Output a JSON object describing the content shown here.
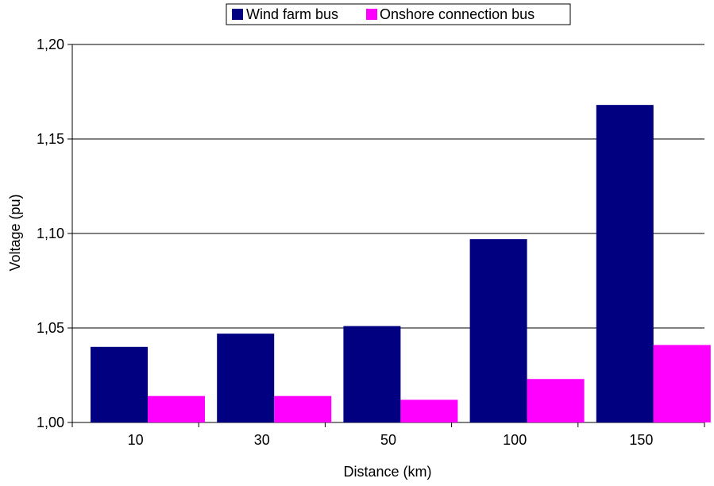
{
  "chart_data": {
    "type": "bar",
    "title": "",
    "xlabel": "Distance (km)",
    "ylabel": "Voltage (pu)",
    "categories": [
      "10",
      "30",
      "50",
      "100",
      "150"
    ],
    "series": [
      {
        "name": "Wind farm bus",
        "color": "#000080",
        "values": [
          1.04,
          1.047,
          1.051,
          1.097,
          1.168
        ]
      },
      {
        "name": "Onshore connection bus",
        "color": "#FF00FF",
        "values": [
          1.014,
          1.014,
          1.012,
          1.023,
          1.041
        ]
      }
    ],
    "ylim": [
      1.0,
      1.2
    ],
    "yticks": [
      "1,00",
      "1,05",
      "1,10",
      "1,15",
      "1,20"
    ],
    "grid": true,
    "legend_position": "top"
  }
}
